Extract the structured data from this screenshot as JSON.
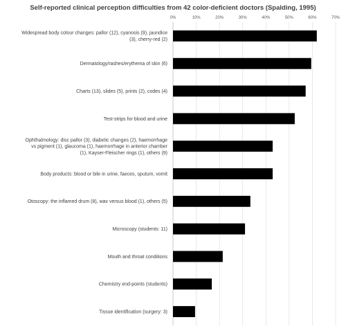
{
  "chart_data": {
    "type": "bar",
    "orientation": "horizontal",
    "title": "Self-reported clinical perception difficulties from 42 color-deficient doctors (Spalding, 1995)",
    "xlabel": "",
    "ylabel": "",
    "xlim": [
      0,
      70
    ],
    "x_ticks": [
      "0%",
      "10%",
      "20%",
      "30%",
      "40%",
      "50%",
      "60%",
      "70%"
    ],
    "grid": true,
    "legend": "none",
    "bar_color": "#000000",
    "categories": [
      "Widespread body colour changes: pallor (12), cyanosis (9), jaundice (3), cherry-red (2)",
      "Dermatology/rashes/erythema of skin (6)",
      "Charts (13), slides (5), prints (2), codes (4)",
      "Test-strips for blood and urine",
      "Ophthalmology: disc pallor (3), diabetic changes (2), haemorrhage vs pigment (1), glaucoma (1), haemorrhage in anterior chamber (1), Kayser-Fleischer rings (1), others (9)",
      "Body products: blood or bile in urine, faeces, sputum, vomit",
      "Otoscopy: the inflamed drum (8), wax versus blood (1), others (5)",
      "Microscopy (students: 11)",
      "Mouth and throat conditions",
      "Chemistry end-points (students)",
      "Tissue identification (surgery: 3)"
    ],
    "category_lines": [
      [
        "Widespread body colour changes: pallor (12), cyanosis (9), jaundice",
        "(3), cherry-red (2)"
      ],
      [
        "Dermatology/rashes/erythema of skin (6)"
      ],
      [
        "Charts (13), slides (5), prints (2), codes (4)"
      ],
      [
        "Test-strips for blood and urine"
      ],
      [
        "Ophthalmology: disc pallor (3), diabetic changes (2), haemorrhage",
        "vs pigment (1), glaucoma (1), haemorrhage in anterior chamber",
        "(1), Kayser-Fleischer rings (1), others (9)"
      ],
      [
        "Body products: blood or bile in urine, faeces, sputum, vomit"
      ],
      [
        "Otoscopy: the inflamed drum (8), wax versus blood (1), others (5)"
      ],
      [
        "Microscopy (students: 11)"
      ],
      [
        "Mouth and throat conditions"
      ],
      [
        "Chemistry end-points (students)"
      ],
      [
        "Tissue identification (surgery: 3)"
      ]
    ],
    "values": [
      61.9,
      59.5,
      57.1,
      52.4,
      42.9,
      42.9,
      33.3,
      31.0,
      21.4,
      16.7,
      9.5
    ]
  }
}
